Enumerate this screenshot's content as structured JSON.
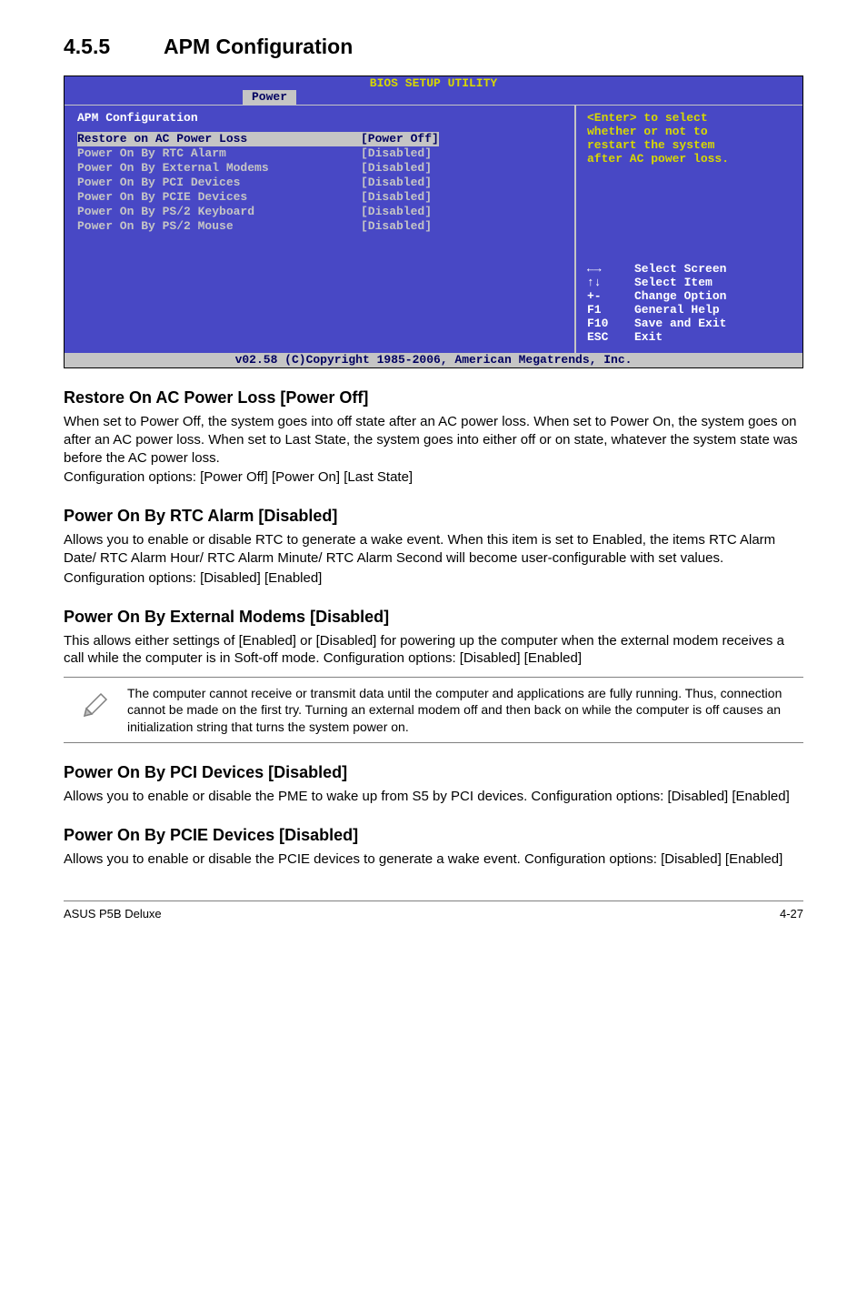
{
  "section": {
    "number": "4.5.5",
    "title": "APM Configuration"
  },
  "bios": {
    "header": "BIOS SETUP UTILITY",
    "active_tab": "Power",
    "panel_title": "APM Configuration",
    "rows": [
      {
        "label": "Restore on AC Power Loss",
        "value": "[Power Off]",
        "selected": true
      },
      {
        "label": "Power On By RTC Alarm",
        "value": "[Disabled]",
        "selected": false
      },
      {
        "label": "Power On By External Modems",
        "value": "[Disabled]",
        "selected": false
      },
      {
        "label": "Power On By PCI Devices",
        "value": "[Disabled]",
        "selected": false
      },
      {
        "label": "Power On By PCIE Devices",
        "value": "[Disabled]",
        "selected": false
      },
      {
        "label": "Power On By PS/2 Keyboard",
        "value": "[Disabled]",
        "selected": false
      },
      {
        "label": "Power On By PS/2 Mouse",
        "value": "[Disabled]",
        "selected": false
      }
    ],
    "help_text_lines": [
      "<Enter> to select",
      "whether or not to",
      "restart the system",
      "after AC power loss."
    ],
    "key_legend": [
      {
        "key_glyph": "←→",
        "desc": "Select Screen"
      },
      {
        "key_glyph": "↑↓",
        "desc": "Select Item"
      },
      {
        "key_glyph": "+-",
        "desc": "Change Option"
      },
      {
        "key_glyph": "F1",
        "desc": "General Help"
      },
      {
        "key_glyph": "F10",
        "desc": "Save and Exit"
      },
      {
        "key_glyph": "ESC",
        "desc": "Exit"
      }
    ],
    "footer": "v02.58 (C)Copyright 1985-2006, American Megatrends, Inc."
  },
  "subsections": [
    {
      "heading": "Restore On AC Power Loss [Power Off]",
      "paragraphs": [
        "When set to Power Off, the system goes into off state after an AC power loss. When set to Power On, the system goes on after an AC power loss. When set to Last State, the system goes into either off or on state, whatever the system state was before the AC power loss.",
        "Configuration options: [Power Off] [Power On] [Last State]"
      ]
    },
    {
      "heading": "Power On By RTC Alarm [Disabled]",
      "paragraphs": [
        "Allows you to enable or disable RTC to generate a wake event. When this item is set to Enabled, the items RTC Alarm Date/ RTC Alarm Hour/ RTC Alarm Minute/ RTC Alarm Second will become user-configurable with set values.",
        "Configuration options: [Disabled] [Enabled]"
      ]
    },
    {
      "heading": "Power On By External Modems [Disabled]",
      "paragraphs": [
        "This allows either settings of [Enabled] or [Disabled] for powering up the computer when the external modem receives a call while the computer is in Soft-off mode. Configuration options: [Disabled] [Enabled]"
      ]
    },
    {
      "heading": "Power On By PCI Devices [Disabled]",
      "paragraphs": [
        "Allows you to enable or disable the PME to wake up from S5 by PCI devices. Configuration options: [Disabled] [Enabled]"
      ]
    },
    {
      "heading": "Power On By PCIE Devices [Disabled]",
      "paragraphs": [
        "Allows you to enable or disable the PCIE devices to generate a wake event. Configuration options: [Disabled] [Enabled]"
      ]
    }
  ],
  "note": {
    "text": "The computer cannot receive or transmit data until the computer and applications are fully running. Thus, connection cannot be made on the first try. Turning an external modem off and then back on while the computer is off causes an initialization string that turns the system power on."
  },
  "page_footer": {
    "left": "ASUS P5B Deluxe",
    "right": "4-27"
  }
}
